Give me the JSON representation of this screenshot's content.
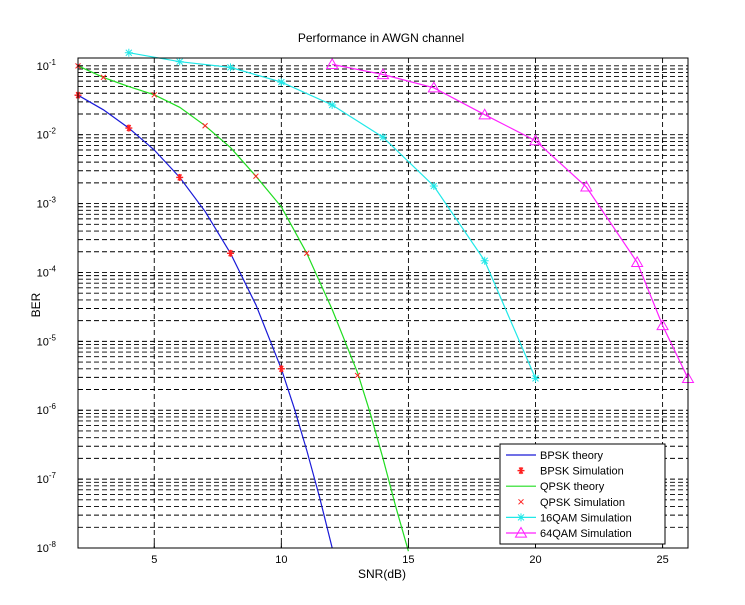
{
  "chart_data": {
    "type": "line",
    "title": "Performance in AWGN channel",
    "xlabel": "SNR(dB)",
    "ylabel": "BER",
    "xlim": [
      2,
      26
    ],
    "ylim": [
      1e-08,
      0.13
    ],
    "yscale": "log",
    "grid": "on (major and minor)",
    "legend_position": "bottom-right",
    "x_ticks": [
      5,
      10,
      15,
      20,
      25
    ],
    "x_tick_labels": [
      "5",
      "10",
      "15",
      "20",
      "25"
    ],
    "y_ticks": [
      {
        "value": 0.1,
        "base": "10",
        "exp": "-1"
      },
      {
        "value": 0.01,
        "base": "10",
        "exp": "-2"
      },
      {
        "value": 0.001,
        "base": "10",
        "exp": "-3"
      },
      {
        "value": 0.0001,
        "base": "10",
        "exp": "-4"
      },
      {
        "value": 1e-05,
        "base": "10",
        "exp": "-5"
      },
      {
        "value": 1e-06,
        "base": "10",
        "exp": "-6"
      },
      {
        "value": 1e-07,
        "base": "10",
        "exp": "-7"
      },
      {
        "value": 1e-08,
        "base": "10",
        "exp": "-8"
      }
    ],
    "series": [
      {
        "name": "BPSK theory",
        "color": "#1a1ad8",
        "style": "line",
        "marker": "none",
        "x": [
          2,
          3,
          4,
          5,
          6,
          7,
          8,
          9,
          10,
          10.5,
          11,
          11.5,
          12
        ],
        "y": [
          0.0375,
          0.023,
          0.0125,
          0.006,
          0.0024,
          0.00077,
          0.00019,
          3.4e-05,
          4e-06,
          1.1e-06,
          2.6e-07,
          5.5e-08,
          1e-08
        ]
      },
      {
        "name": "BPSK Simulation",
        "color": "#ff2020",
        "style": "none",
        "marker": "asterisk",
        "x": [
          2,
          4,
          6,
          8,
          10
        ],
        "y": [
          0.0375,
          0.0125,
          0.0024,
          0.00019,
          4e-06
        ]
      },
      {
        "name": "QPSK theory",
        "color": "#20dd20",
        "style": "line",
        "marker": "none",
        "x": [
          2,
          3,
          4,
          5,
          6,
          7,
          8,
          9,
          10,
          11,
          12,
          13,
          13.5,
          14,
          14.5,
          15
        ],
        "y": [
          0.1,
          0.068,
          0.05,
          0.038,
          0.025,
          0.0135,
          0.0065,
          0.0025,
          0.0009,
          0.00019,
          2.9e-05,
          3.5e-06,
          9e-07,
          2e-07,
          4e-08,
          9e-09
        ]
      },
      {
        "name": "QPSK Simulation",
        "color": "#ff2020",
        "style": "none",
        "marker": "x",
        "x": [
          2,
          3,
          5,
          7,
          9,
          11,
          13
        ],
        "y": [
          0.1,
          0.068,
          0.038,
          0.0135,
          0.0025,
          0.00019,
          3.2e-06
        ]
      },
      {
        "name": "16QAM Simulation",
        "color": "#20e8e8",
        "style": "line",
        "marker": "star",
        "x": [
          4,
          6,
          8,
          10,
          12,
          14,
          16,
          18,
          20
        ],
        "y": [
          0.155,
          0.115,
          0.095,
          0.058,
          0.027,
          0.0092,
          0.0018,
          0.000148,
          2.9e-06
        ]
      },
      {
        "name": "64QAM Simulation",
        "color": "#ff20ff",
        "style": "line",
        "marker": "triangle",
        "x": [
          12,
          14,
          16,
          18,
          20,
          22,
          24,
          25,
          26
        ],
        "y": [
          0.105,
          0.075,
          0.048,
          0.0195,
          0.0082,
          0.00175,
          0.00014,
          1.7e-05,
          2.9e-06
        ]
      }
    ]
  }
}
